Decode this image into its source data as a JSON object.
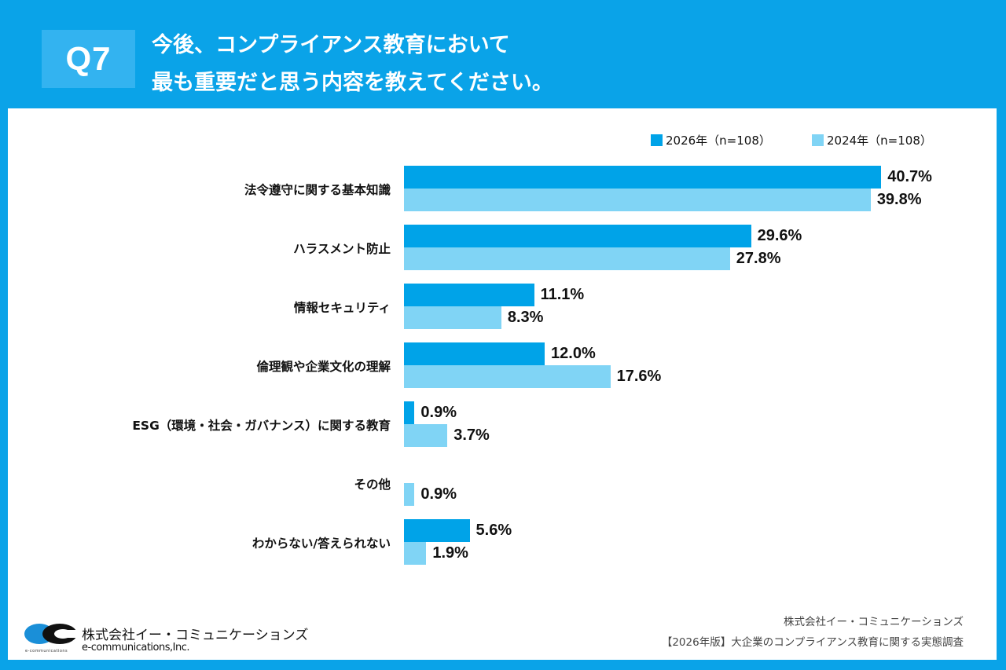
{
  "header": {
    "question_badge": "Q7",
    "title_line1": "今後、コンプライアンス教育において",
    "title_line2": "最も重要だと思う内容を教えてください。"
  },
  "colors": {
    "background": "#0aa3e8",
    "badge": "#33b3f0",
    "series_2026": "#00a3e8",
    "series_2024": "#80d4f5"
  },
  "chart_data": {
    "type": "bar",
    "orientation": "horizontal",
    "title": "今後、コンプライアンス教育において最も重要だと思う内容を教えてください。",
    "xlabel": "",
    "ylabel": "",
    "xlim": [
      0,
      45
    ],
    "unit": "%",
    "grid": false,
    "legend_position": "top-right",
    "categories": [
      "法令遵守に関する基本知識",
      "ハラスメント防止",
      "情報セキュリティ",
      "倫理観や企業文化の理解",
      "ESG（環境・社会・ガバナンス）に関する教育",
      "その他",
      "わからない/答えられない"
    ],
    "series": [
      {
        "name": "2026年（n=108）",
        "values": [
          40.7,
          29.6,
          11.1,
          12.0,
          0.9,
          0.0,
          5.6
        ],
        "labels": [
          "40.7%",
          "29.6%",
          "11.1%",
          "12.0%",
          "0.9%",
          "",
          "5.6%"
        ]
      },
      {
        "name": "2024年（n=108）",
        "values": [
          39.8,
          27.8,
          8.3,
          17.6,
          3.7,
          0.9,
          1.9
        ],
        "labels": [
          "39.8%",
          "27.8%",
          "8.3%",
          "17.6%",
          "3.7%",
          "0.9%",
          "1.9%"
        ]
      }
    ]
  },
  "footer": {
    "logo_name_jp": "株式会社イー・コミュニケーションズ",
    "logo_name_en": "e-communications,Inc.",
    "logo_small_text": "e-communications",
    "source_company": "株式会社イー・コミュニケーションズ",
    "source_survey": "【2026年版】大企業のコンプライアンス教育に関する実態調査"
  }
}
